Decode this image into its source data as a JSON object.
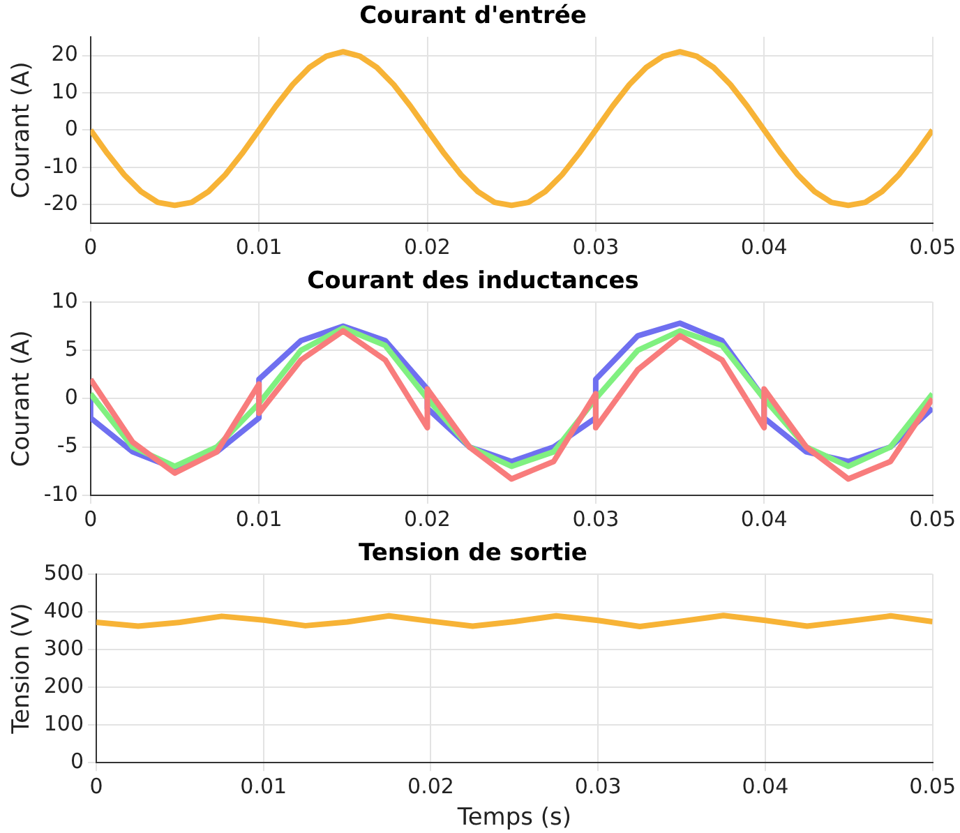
{
  "chart_data": [
    {
      "type": "line",
      "title": "Courant d'entrée",
      "ylabel": "Courant (A)",
      "xlim": [
        0,
        0.05
      ],
      "xticks": [
        0,
        0.01,
        0.02,
        0.03,
        0.04,
        0.05
      ],
      "ylim": [
        -25,
        25
      ],
      "yticks": [
        -20,
        -10,
        0,
        10,
        20
      ],
      "grid": true,
      "marker": "none",
      "x": [
        0,
        0.001,
        0.002,
        0.003,
        0.004,
        0.005,
        0.006,
        0.007,
        0.008,
        0.009,
        0.01,
        0.011,
        0.012,
        0.013,
        0.014,
        0.015,
        0.016,
        0.017,
        0.018,
        0.019,
        0.02,
        0.021,
        0.022,
        0.023,
        0.024,
        0.025,
        0.026,
        0.027,
        0.028,
        0.029,
        0.03,
        0.031,
        0.032,
        0.033,
        0.034,
        0.035,
        0.036,
        0.037,
        0.038,
        0.039,
        0.04,
        0.041,
        0.042,
        0.043,
        0.044,
        0.045,
        0.046,
        0.047,
        0.048,
        0.049,
        0.05
      ],
      "series": [
        {
          "color": "#f7b336",
          "values": [
            0,
            -6.3,
            -12,
            -16.5,
            -19.4,
            -20.2,
            -19.4,
            -16.5,
            -12,
            -6.3,
            0,
            6.4,
            12.2,
            16.8,
            19.8,
            21,
            19.8,
            16.8,
            12.2,
            6.4,
            0,
            -6.3,
            -12,
            -16.5,
            -19.4,
            -20.2,
            -19.4,
            -16.5,
            -12,
            -6.3,
            0,
            6.4,
            12.2,
            16.8,
            19.8,
            21,
            19.8,
            16.8,
            12.2,
            6.4,
            0,
            -6.3,
            -12,
            -16.5,
            -19.4,
            -20.2,
            -19.4,
            -16.5,
            -12,
            -6.3,
            0
          ]
        }
      ]
    },
    {
      "type": "line",
      "title": "Courant des inductances",
      "ylabel": "Courant (A)",
      "xlim": [
        0,
        0.05
      ],
      "xticks": [
        0,
        0.01,
        0.02,
        0.03,
        0.04,
        0.05
      ],
      "ylim": [
        -10,
        10
      ],
      "yticks": [
        -10,
        -5,
        0,
        5,
        10
      ],
      "grid": true,
      "marker": "none",
      "series": [
        {
          "color": "#f87c7c",
          "x": [
            0,
            0.0025,
            0.005,
            0.0075,
            0.01,
            0.01,
            0.0125,
            0.015,
            0.0175,
            0.02,
            0.02,
            0.0225,
            0.025,
            0.0275,
            0.03,
            0.03,
            0.0325,
            0.035,
            0.0375,
            0.04,
            0.04,
            0.0425,
            0.045,
            0.0475,
            0.05
          ],
          "values": [
            2,
            -4.5,
            -7.7,
            -5.5,
            1.5,
            -1.5,
            4,
            7,
            4,
            -3,
            1,
            -5,
            -8.3,
            -6.5,
            0.5,
            -3,
            3,
            6.5,
            4,
            -3,
            1,
            -5,
            -8.3,
            -6.5,
            0
          ]
        },
        {
          "color": "#80f080",
          "x": [
            0,
            0.0025,
            0.005,
            0.0075,
            0.01,
            0.0125,
            0.015,
            0.0175,
            0.02,
            0.0225,
            0.025,
            0.0275,
            0.03,
            0.0325,
            0.035,
            0.0375,
            0.04,
            0.0425,
            0.045,
            0.0475,
            0.05
          ],
          "values": [
            0.5,
            -5,
            -7,
            -5,
            -0.5,
            5,
            7.3,
            5.5,
            0,
            -5,
            -7,
            -5.5,
            0,
            5,
            7,
            5.5,
            0,
            -5,
            -7,
            -5,
            0.5
          ]
        },
        {
          "color": "#6f6ff0",
          "x": [
            0,
            0,
            0.0025,
            0.005,
            0.0075,
            0.01,
            0.01,
            0.0125,
            0.015,
            0.0175,
            0.02,
            0.02,
            0.0225,
            0.025,
            0.0275,
            0.03,
            0.03,
            0.0325,
            0.035,
            0.0375,
            0.04,
            0.04,
            0.0425,
            0.045,
            0.0475,
            0.05
          ],
          "values": [
            0,
            -2,
            -5.5,
            -7.2,
            -5.5,
            -2,
            2,
            6,
            7.5,
            6,
            1,
            -1,
            -5,
            -6.5,
            -5,
            -2,
            2,
            6.5,
            7.8,
            6,
            0,
            -2,
            -5.5,
            -6.5,
            -5,
            -1
          ]
        }
      ]
    },
    {
      "type": "line",
      "title": "Tension de sortie",
      "ylabel": "Tension (V)",
      "xlabel": "Temps (s)",
      "xlim": [
        0,
        0.05
      ],
      "xticks": [
        0,
        0.01,
        0.02,
        0.03,
        0.04,
        0.05
      ],
      "ylim": [
        0,
        500
      ],
      "yticks": [
        0,
        100,
        200,
        300,
        400,
        500
      ],
      "grid": true,
      "marker": "none",
      "x": [
        0,
        0.0025,
        0.005,
        0.0075,
        0.01,
        0.0125,
        0.015,
        0.0175,
        0.02,
        0.0225,
        0.025,
        0.0275,
        0.03,
        0.0325,
        0.035,
        0.0375,
        0.04,
        0.0425,
        0.045,
        0.0475,
        0.05
      ],
      "series": [
        {
          "color": "#f7b336",
          "values": [
            372,
            362,
            372,
            388,
            378,
            363,
            373,
            389,
            375,
            362,
            374,
            389,
            377,
            361,
            375,
            390,
            377,
            362,
            375,
            389,
            374
          ]
        }
      ]
    }
  ]
}
